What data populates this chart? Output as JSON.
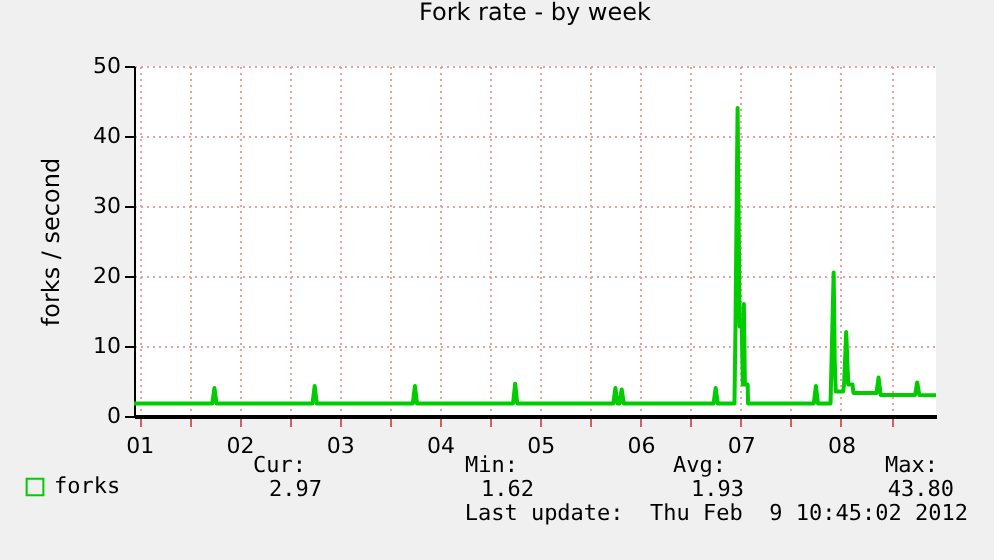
{
  "chart_data": {
    "type": "line",
    "title": "Fork rate - by week",
    "ylabel": "forks / second",
    "x": [
      "2012-02-01T10:45",
      "2012-02-02T05:30",
      "2012-02-02T06:00",
      "2012-02-02T06:30",
      "2012-02-03T05:30",
      "2012-02-03T06:00",
      "2012-02-03T06:30",
      "2012-02-04T05:30",
      "2012-02-04T06:00",
      "2012-02-04T06:30",
      "2012-02-05T05:30",
      "2012-02-05T06:00",
      "2012-02-05T06:30",
      "2012-02-06T05:30",
      "2012-02-06T06:00",
      "2012-02-06T06:30",
      "2012-02-06T07:00",
      "2012-02-06T07:30",
      "2012-02-06T08:00",
      "2012-02-07T05:30",
      "2012-02-07T06:00",
      "2012-02-07T06:30",
      "2012-02-07T10:30",
      "2012-02-07T10:45",
      "2012-02-07T11:15",
      "2012-02-07T11:45",
      "2012-02-07T12:15",
      "2012-02-07T12:30",
      "2012-02-07T12:45",
      "2012-02-07T13:00",
      "2012-02-07T13:40",
      "2012-02-07T13:45",
      "2012-02-08T05:30",
      "2012-02-08T06:00",
      "2012-02-08T06:30",
      "2012-02-08T09:30",
      "2012-02-08T09:45",
      "2012-02-08T10:15",
      "2012-02-08T10:30",
      "2012-02-08T10:45",
      "2012-02-08T12:30",
      "2012-02-08T12:45",
      "2012-02-08T13:15",
      "2012-02-08T13:45",
      "2012-02-08T14:45",
      "2012-02-08T15:00",
      "2012-02-08T20:30",
      "2012-02-08T21:00",
      "2012-02-08T21:30",
      "2012-02-09T05:45",
      "2012-02-09T06:15",
      "2012-02-09T06:45",
      "2012-02-09T10:45"
    ],
    "series": [
      {
        "name": "forks",
        "color": "#00cc00",
        "values": [
          1.8,
          1.8,
          4.0,
          1.8,
          1.8,
          4.3,
          1.8,
          1.8,
          4.3,
          1.8,
          1.8,
          4.6,
          1.8,
          1.8,
          4.0,
          1.8,
          1.8,
          3.8,
          1.8,
          1.8,
          4.0,
          1.8,
          1.8,
          12.8,
          44,
          12.8,
          12.8,
          4.5,
          16,
          4.5,
          4.5,
          1.8,
          1.8,
          4.3,
          1.8,
          1.8,
          8.0,
          20.5,
          8.0,
          3.5,
          3.5,
          4.5,
          12,
          4.5,
          4.5,
          3.3,
          3.3,
          5.5,
          3.0,
          3.0,
          4.8,
          3.0,
          2.97
        ]
      }
    ],
    "xlim": [
      "2012-02-01T10:45",
      "2012-02-09T10:45"
    ],
    "xticks": [
      {
        "value": "2012-02-01T12:00",
        "label": "01"
      },
      {
        "value": "2012-02-02T12:00",
        "label": "02"
      },
      {
        "value": "2012-02-03T12:00",
        "label": "03"
      },
      {
        "value": "2012-02-04T12:00",
        "label": "04"
      },
      {
        "value": "2012-02-05T12:00",
        "label": "05"
      },
      {
        "value": "2012-02-06T12:00",
        "label": "06"
      },
      {
        "value": "2012-02-07T12:00",
        "label": "07"
      },
      {
        "value": "2012-02-08T12:00",
        "label": "08"
      },
      {
        "value": "2012-02-02T00:00",
        "label": null
      },
      {
        "value": "2012-02-03T00:00",
        "label": null
      },
      {
        "value": "2012-02-04T00:00",
        "label": null
      },
      {
        "value": "2012-02-05T00:00",
        "label": null
      },
      {
        "value": "2012-02-06T00:00",
        "label": null
      },
      {
        "value": "2012-02-07T00:00",
        "label": null
      },
      {
        "value": "2012-02-08T00:00",
        "label": null
      },
      {
        "value": "2012-02-09T00:00",
        "label": null
      }
    ],
    "ylim": [
      0,
      50
    ],
    "yticks": [
      0,
      10,
      20,
      30,
      40,
      50
    ],
    "grid": true,
    "legend": "bottom left",
    "marker": "none",
    "line_style": "solid",
    "annotations": [
      "Cur:",
      "Min:",
      "Avg:",
      "Max:",
      "2.97",
      "1.62",
      "1.93",
      "43.80",
      "Last update:  Thu Feb  9 10:45:02 2012"
    ]
  }
}
